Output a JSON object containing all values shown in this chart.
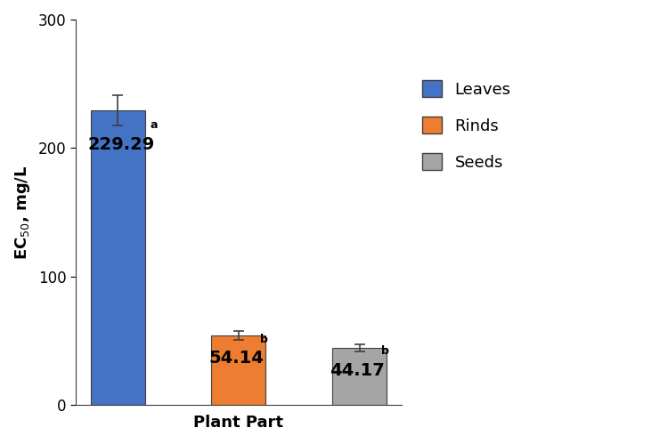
{
  "categories": [
    "Leaves",
    "Rinds",
    "Seeds"
  ],
  "values": [
    229.29,
    54.14,
    44.17
  ],
  "errors": [
    12.0,
    3.5,
    3.0
  ],
  "bar_colors": [
    "#4472C4",
    "#ED7D31",
    "#A5A5A5"
  ],
  "bar_labels": [
    "229.29",
    "54.14",
    "44.17"
  ],
  "bar_superscripts": [
    "a",
    "b",
    "b"
  ],
  "legend_labels": [
    "Leaves",
    "Rinds",
    "Seeds"
  ],
  "ylabel": "EC$_{50}$, mg/L",
  "xlabel": "Plant Part",
  "ylim": [
    0,
    300
  ],
  "yticks": [
    0,
    100,
    200,
    300
  ],
  "bar_width": 0.45,
  "label_fontsize": 13,
  "tick_fontsize": 12,
  "legend_fontsize": 13,
  "superscript_fontsize": 9,
  "value_label_fontsize": 14,
  "edge_color": "#3F3F3F",
  "error_capsize": 4,
  "error_color": "#3F3F3F",
  "background_color": "#FFFFFF"
}
